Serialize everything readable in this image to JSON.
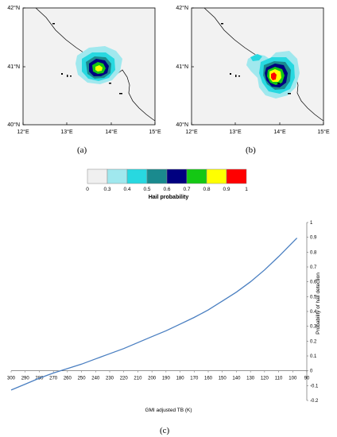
{
  "maps": [
    {
      "panel_label": "(a)",
      "lat_ticks": [
        "42°N",
        "41°N",
        "40°N"
      ],
      "lon_ticks": [
        "12°E",
        "13°E",
        "14°E",
        "15°E"
      ]
    },
    {
      "panel_label": "(b)",
      "lat_ticks": [
        "42°N",
        "41°N",
        "40°N"
      ],
      "lon_ticks": [
        "12°E",
        "13°E",
        "14°E",
        "15°E"
      ]
    }
  ],
  "colorbar": {
    "title": "Hail probability",
    "ticks": [
      "0",
      "0.3",
      "0.4",
      "0.5",
      "0.6",
      "0.7",
      "0.8",
      "0.9",
      "1"
    ],
    "colors": [
      "#f0f0f0",
      "#a0e8ee",
      "#28d8e0",
      "#1a8a8e",
      "#000080",
      "#14c814",
      "#ffff00",
      "#ff0000"
    ]
  },
  "chart_data": {
    "type": "line",
    "panel_label": "(c)",
    "xlabel": "GMI adjusted TB (K)",
    "ylabel": "Probability of hail detection",
    "xticks": [
      "300",
      "290",
      "280",
      "270",
      "260",
      "250",
      "240",
      "230",
      "220",
      "210",
      "200",
      "190",
      "180",
      "170",
      "160",
      "150",
      "140",
      "130",
      "120",
      "110",
      "100",
      "90"
    ],
    "yticks": [
      "1",
      "0.9",
      "0.8",
      "0.7",
      "0.6",
      "0.5",
      "0.4",
      "0.3",
      "0.2",
      "0.1",
      "0",
      "-0.1",
      "-0.2"
    ],
    "xlim": [
      300,
      90
    ],
    "ylim": [
      -0.2,
      1
    ],
    "line_color": "#4a7fc1",
    "series": [
      {
        "x": [
          300,
          290,
          280,
          270,
          260,
          250,
          240,
          230,
          220,
          210,
          200,
          190,
          180,
          170,
          160,
          150,
          140,
          130,
          120,
          110,
          97
        ],
        "y": [
          -0.13,
          -0.09,
          -0.05,
          -0.015,
          0.015,
          0.045,
          0.08,
          0.115,
          0.15,
          0.19,
          0.23,
          0.27,
          0.315,
          0.36,
          0.41,
          0.47,
          0.53,
          0.6,
          0.68,
          0.77,
          0.895
        ]
      }
    ]
  }
}
